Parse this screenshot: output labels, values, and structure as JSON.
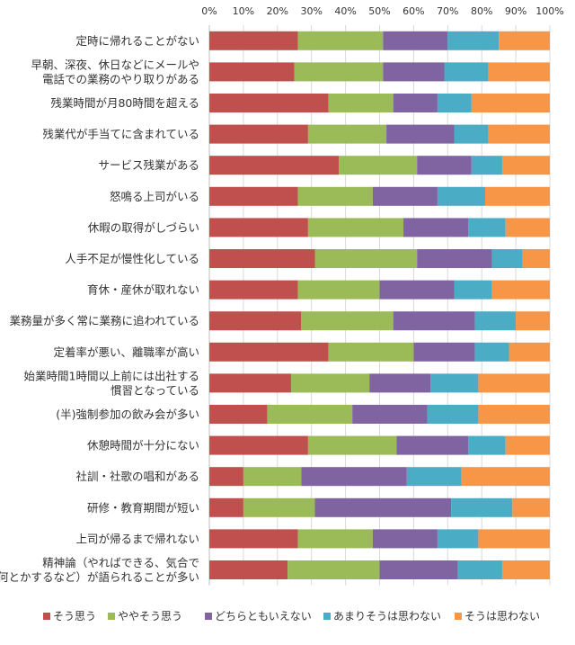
{
  "chart_data": {
    "type": "bar",
    "orientation": "horizontal",
    "stacked": true,
    "percent": true,
    "xlim": [
      0,
      100
    ],
    "x_ticks": [
      "0%",
      "10%",
      "20%",
      "30%",
      "40%",
      "50%",
      "60%",
      "70%",
      "80%",
      "90%",
      "100%"
    ],
    "tick_axis": "top",
    "grid": true,
    "legend_position": "bottom",
    "categories": [
      [
        "定時に帰れることがない"
      ],
      [
        "早朝、深夜、休日などにメールや",
        "電話での業務のやり取りがある"
      ],
      [
        "残業時間が月80時間を超える"
      ],
      [
        "残業代が手当てに含まれている"
      ],
      [
        "サービス残業がある"
      ],
      [
        "怒鳴る上司がいる"
      ],
      [
        "休暇の取得がしづらい"
      ],
      [
        "人手不足が慢性化している"
      ],
      [
        "育休・産休が取れない"
      ],
      [
        "業務量が多く常に業務に追われている"
      ],
      [
        "定着率が悪い、離職率が高い"
      ],
      [
        "始業時間1時間以上前には出社する",
        "慣習となっている"
      ],
      [
        "(半)強制参加の飲み会が多い"
      ],
      [
        "休憩時間が十分にない"
      ],
      [
        "社訓・社歌の唱和がある"
      ],
      [
        "研修・教育期間が短い"
      ],
      [
        "上司が帰るまで帰れない"
      ],
      [
        "精神論（やればできる、気合で",
        "何とかするなど）が語られることが多い"
      ]
    ],
    "series": [
      {
        "name": "そう思う",
        "color": "#C0504D",
        "values": [
          26,
          25,
          35,
          29,
          38,
          26,
          29,
          31,
          26,
          27,
          35,
          24,
          17,
          29,
          10,
          10,
          26,
          23
        ]
      },
      {
        "name": "ややそう思う",
        "color": "#9BBB59",
        "values": [
          25,
          26,
          19,
          23,
          23,
          22,
          28,
          30,
          24,
          27,
          25,
          23,
          25,
          26,
          17,
          21,
          22,
          27
        ]
      },
      {
        "name": "どちらともいえない",
        "color": "#8064A2",
        "values": [
          19,
          18,
          13,
          20,
          16,
          19,
          19,
          22,
          22,
          24,
          18,
          18,
          22,
          21,
          31,
          40,
          19,
          23
        ]
      },
      {
        "name": "あまりそうは思わない",
        "color": "#4BACC6",
        "values": [
          15,
          13,
          10,
          10,
          9,
          14,
          11,
          9,
          11,
          12,
          10,
          14,
          15,
          11,
          16,
          18,
          12,
          13
        ]
      },
      {
        "name": "そうは思わない",
        "color": "#F79646",
        "values": [
          15,
          18,
          23,
          18,
          14,
          19,
          13,
          8,
          17,
          10,
          12,
          21,
          21,
          13,
          26,
          11,
          21,
          14
        ]
      }
    ]
  }
}
